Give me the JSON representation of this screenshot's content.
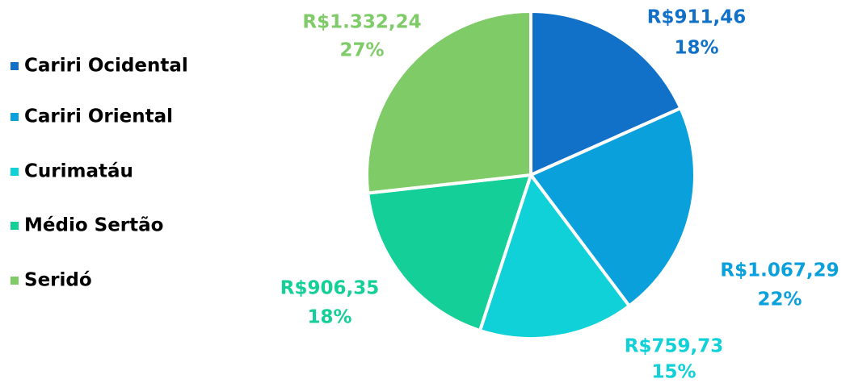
{
  "chart_data": {
    "type": "pie",
    "categories": [
      "Cariri Ocidental",
      "Cariri Oriental",
      "Curimatáu",
      "Médio Sertão",
      "Seridó"
    ],
    "values": [
      911.46,
      1067.29,
      759.73,
      906.35,
      1332.24
    ],
    "value_labels": [
      "R$911,46",
      "R$1.067,29",
      "R$759,73",
      "R$906,35",
      "R$1.332,24"
    ],
    "percents": [
      18,
      22,
      15,
      18,
      27
    ],
    "percent_labels": [
      "18%",
      "22%",
      "15%",
      "18%",
      "27%"
    ],
    "colors": [
      "#1170c8",
      "#0aa0dc",
      "#10d0d8",
      "#14cf98",
      "#7ecb68"
    ],
    "legend": "left"
  }
}
